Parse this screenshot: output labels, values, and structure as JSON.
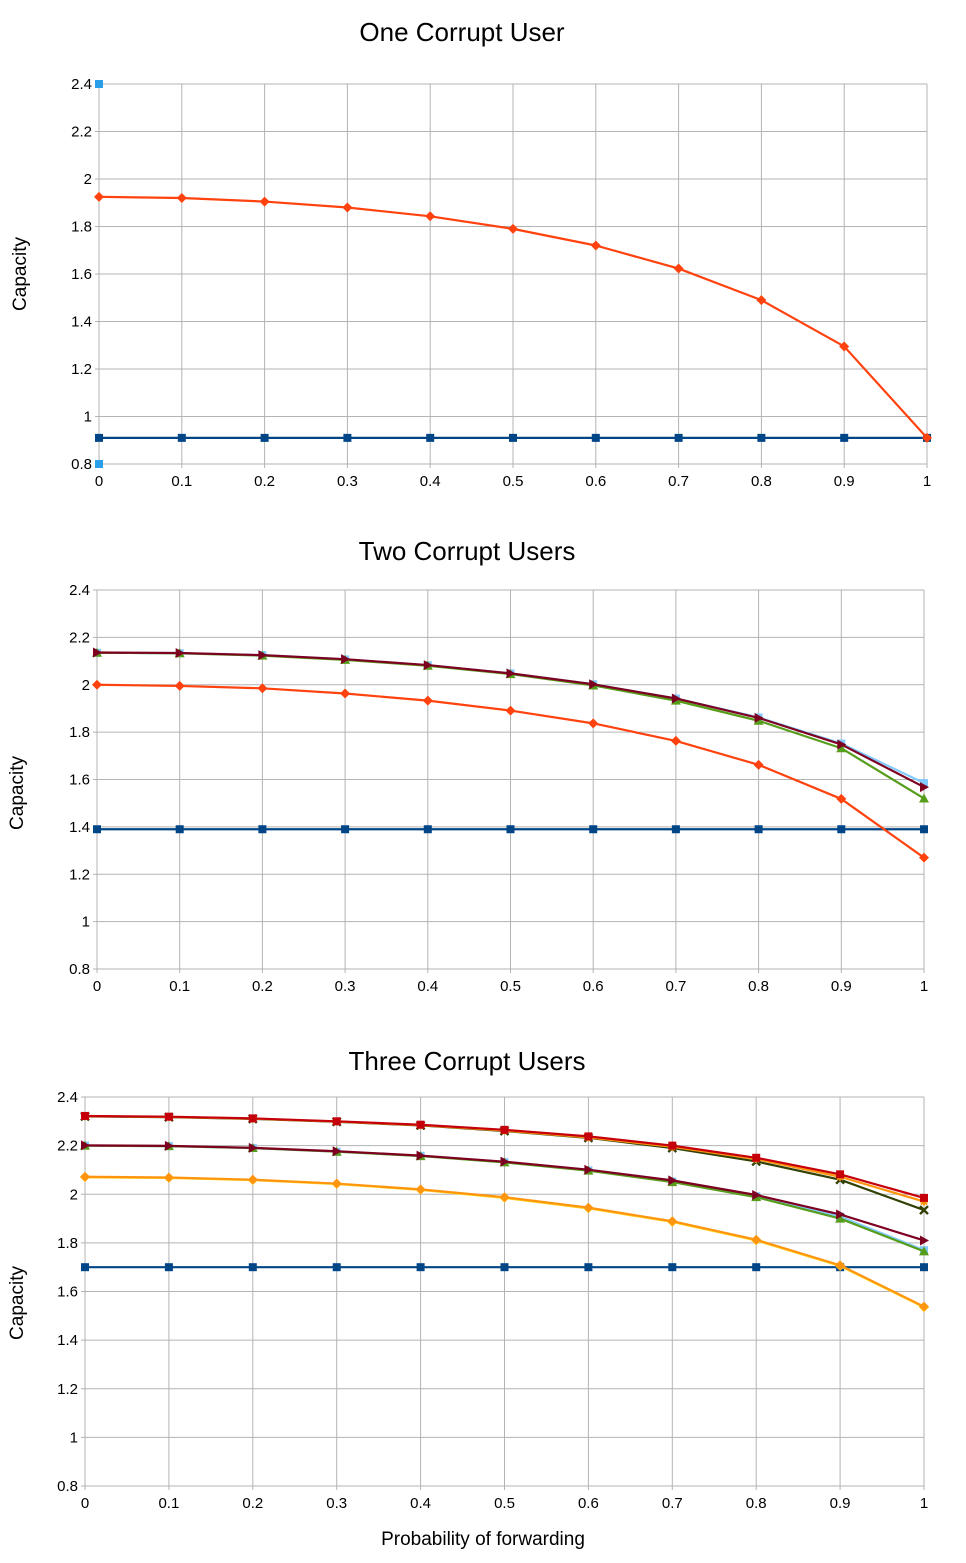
{
  "colors": {
    "blue": "#004586",
    "orange": "#ff420e",
    "green": "#579d1c",
    "lightblue": "#83caff",
    "darkred": "#7e0021",
    "olive": "#314004",
    "red": "#c5000b",
    "yellow": "#ffd320",
    "amber": "#ff950e",
    "sky": "#2a9ee8"
  },
  "shared_xlabel": "Probability of forwarding",
  "chart_data": [
    {
      "type": "line",
      "title": "One Corrupt User",
      "ylabel": "Capacity",
      "xlabel": "",
      "ylim": [
        0.8,
        2.4
      ],
      "yticks": [
        "0.8",
        "1",
        "1.2",
        "1.4",
        "1.6",
        "1.8",
        "2",
        "2.2",
        "2.4"
      ],
      "xticks": [
        "0",
        "0.1",
        "0.2",
        "0.3",
        "0.4",
        "0.5",
        "0.6",
        "0.7",
        "0.8",
        "0.9",
        "1"
      ],
      "x": [
        0,
        0.1,
        0.2,
        0.3,
        0.4,
        0.5,
        0.6,
        0.7,
        0.8,
        0.9,
        1
      ],
      "grid": true,
      "series": [
        {
          "color": "#004586",
          "marker": "square",
          "values": [
            0.91,
            0.91,
            0.91,
            0.91,
            0.91,
            0.91,
            0.91,
            0.91,
            0.91,
            0.91,
            0.91
          ]
        },
        {
          "color": "#ff420e",
          "marker": "diamond",
          "values": [
            1.925,
            1.92,
            1.905,
            1.88,
            1.843,
            1.79,
            1.72,
            1.623,
            1.49,
            1.295,
            0.91
          ]
        }
      ],
      "extra_points": [
        {
          "color": "#2a9ee8",
          "x": 0,
          "y": 2.4
        },
        {
          "color": "#2a9ee8",
          "x": 0,
          "y": 0.8
        }
      ]
    },
    {
      "type": "line",
      "title": "Two Corrupt Users",
      "ylabel": "Capacity",
      "xlabel": "",
      "ylim": [
        0.8,
        2.4
      ],
      "yticks": [
        "0.8",
        "1",
        "1.2",
        "1.4",
        "1.6",
        "1.8",
        "2",
        "2.2",
        "2.4"
      ],
      "xticks": [
        "0",
        "0.1",
        "0.2",
        "0.3",
        "0.4",
        "0.5",
        "0.6",
        "0.7",
        "0.8",
        "0.9",
        "1"
      ],
      "x": [
        0,
        0.1,
        0.2,
        0.3,
        0.4,
        0.5,
        0.6,
        0.7,
        0.8,
        0.9,
        1
      ],
      "grid": true,
      "series": [
        {
          "color": "#004586",
          "marker": "square",
          "values": [
            1.39,
            1.39,
            1.39,
            1.39,
            1.39,
            1.39,
            1.39,
            1.39,
            1.39,
            1.39,
            1.39
          ]
        },
        {
          "color": "#ff420e",
          "marker": "diamond",
          "values": [
            2.0,
            1.995,
            1.985,
            1.963,
            1.933,
            1.891,
            1.837,
            1.763,
            1.662,
            1.518,
            1.27
          ]
        },
        {
          "color": "#83caff",
          "marker": "square",
          "values": [
            2.135,
            2.133,
            2.125,
            2.107,
            2.082,
            2.048,
            2.002,
            1.942,
            1.862,
            1.752,
            1.585
          ]
        },
        {
          "color": "#579d1c",
          "marker": "triangle-up",
          "values": [
            2.135,
            2.133,
            2.123,
            2.105,
            2.08,
            2.045,
            1.997,
            1.933,
            1.848,
            1.732,
            1.52
          ]
        },
        {
          "color": "#7e0021",
          "marker": "triangle-right",
          "values": [
            2.136,
            2.134,
            2.125,
            2.108,
            2.083,
            2.048,
            2.002,
            1.942,
            1.86,
            1.748,
            1.568
          ]
        }
      ]
    },
    {
      "type": "line",
      "title": "Three Corrupt Users",
      "ylabel": "Capacity",
      "xlabel": "Probability of forwarding",
      "ylim": [
        0.8,
        2.4
      ],
      "yticks": [
        "0.8",
        "1",
        "1.2",
        "1.4",
        "1.6",
        "1.8",
        "2",
        "2.2",
        "2.4"
      ],
      "xticks": [
        "0",
        "0.1",
        "0.2",
        "0.3",
        "0.4",
        "0.5",
        "0.6",
        "0.7",
        "0.8",
        "0.9",
        "1"
      ],
      "x": [
        0,
        0.1,
        0.2,
        0.3,
        0.4,
        0.5,
        0.6,
        0.7,
        0.8,
        0.9,
        1
      ],
      "grid": true,
      "series": [
        {
          "color": "#004586",
          "marker": "square",
          "values": [
            1.7,
            1.7,
            1.7,
            1.7,
            1.7,
            1.7,
            1.7,
            1.7,
            1.7,
            1.7,
            1.7
          ]
        },
        {
          "color": "#ffd320",
          "marker": "diamond",
          "values": [
            2.07,
            2.067,
            2.058,
            2.042,
            2.018,
            1.985,
            1.942,
            1.886,
            1.81,
            1.705,
            1.535
          ]
        },
        {
          "color": "#ff950e",
          "marker": "diamond",
          "values": [
            2.072,
            2.069,
            2.06,
            2.044,
            2.02,
            1.988,
            1.945,
            1.889,
            1.813,
            1.708,
            1.538
          ]
        },
        {
          "color": "#83caff",
          "marker": "square",
          "values": [
            2.2,
            2.198,
            2.19,
            2.175,
            2.158,
            2.132,
            2.098,
            2.052,
            1.992,
            1.908,
            1.77
          ]
        },
        {
          "color": "#579d1c",
          "marker": "triangle-up",
          "values": [
            2.2,
            2.198,
            2.19,
            2.175,
            2.157,
            2.131,
            2.097,
            2.05,
            1.988,
            1.9,
            1.765
          ]
        },
        {
          "color": "#7e0021",
          "marker": "triangle-right",
          "values": [
            2.201,
            2.199,
            2.191,
            2.177,
            2.159,
            2.134,
            2.101,
            2.057,
            1.997,
            1.917,
            1.81
          ]
        },
        {
          "color": "#314004",
          "marker": "x",
          "values": [
            2.32,
            2.317,
            2.31,
            2.298,
            2.283,
            2.26,
            2.232,
            2.19,
            2.135,
            2.06,
            1.935
          ]
        },
        {
          "color": "#ff950e",
          "marker": "star",
          "values": [
            2.321,
            2.318,
            2.311,
            2.299,
            2.284,
            2.262,
            2.234,
            2.195,
            2.145,
            2.072,
            1.97
          ]
        },
        {
          "color": "#c5000b",
          "marker": "square",
          "values": [
            2.322,
            2.319,
            2.312,
            2.3,
            2.286,
            2.265,
            2.238,
            2.2,
            2.15,
            2.082,
            1.985
          ]
        }
      ]
    }
  ]
}
